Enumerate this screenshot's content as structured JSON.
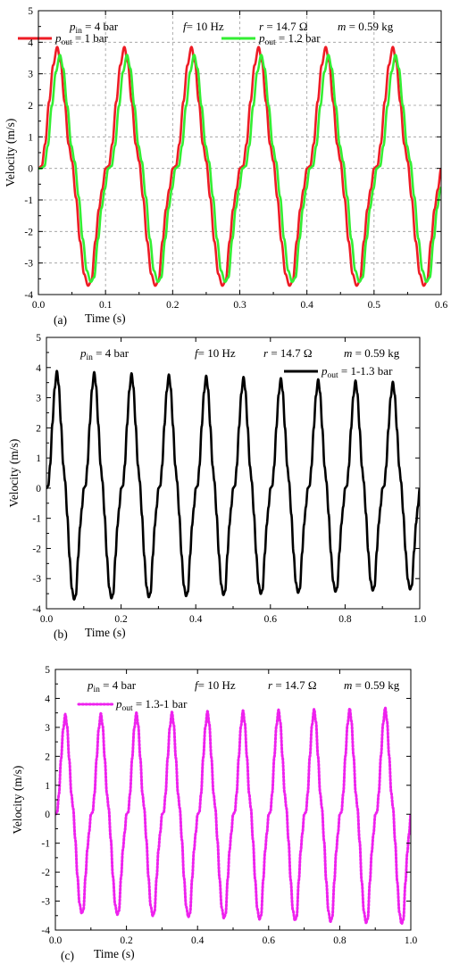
{
  "chart_data": [
    {
      "type": "line",
      "panel_label": "(a)",
      "xlabel": "Time (s)",
      "ylabel": "Velocity (m/s)",
      "xlim": [
        0,
        0.6
      ],
      "ylim": [
        -4,
        5
      ],
      "x_ticks": [
        "0.0",
        "0.1",
        "0.2",
        "0.3",
        "0.4",
        "0.5",
        "0.6"
      ],
      "y_ticks": [
        "-4",
        "-3",
        "-2",
        "-1",
        "0",
        "1",
        "2",
        "3",
        "4",
        "5"
      ],
      "grid": true,
      "annotations": [
        {
          "sym": "p",
          "sub": "in",
          "rest": " = 4 bar"
        },
        {
          "sym": "f",
          "sub": "",
          "rest": "= 10 Hz"
        },
        {
          "sym": "r",
          "sub": "",
          "rest": " = 14.7 Ω"
        },
        {
          "sym": "m",
          "sub": "",
          "rest": " = 0.59 kg"
        }
      ],
      "series": [
        {
          "name": {
            "sym": "p",
            "sub": "out",
            "rest": " = 1 bar"
          },
          "color": "#ee1c25",
          "style": "solid",
          "period": 0.1,
          "peak": 3.85,
          "trough": -3.72
        },
        {
          "name": {
            "sym": "p",
            "sub": "out",
            "rest": " = 1.2 bar"
          },
          "color": "#33ee33",
          "style": "solid",
          "period": 0.1,
          "peak": 3.6,
          "trough": -3.6
        }
      ]
    },
    {
      "type": "line",
      "panel_label": "(b)",
      "xlabel": "Time (s)",
      "ylabel": "Velocity (m/s)",
      "xlim": [
        0,
        1.0
      ],
      "ylim": [
        -4,
        5
      ],
      "x_ticks": [
        "0.0",
        "0.2",
        "0.4",
        "0.6",
        "0.8",
        "1.0"
      ],
      "y_ticks": [
        "-4",
        "-3",
        "-2",
        "-1",
        "0",
        "1",
        "2",
        "3",
        "4",
        "5"
      ],
      "grid": false,
      "annotations": [
        {
          "sym": "p",
          "sub": "in",
          "rest": " = 4 bar"
        },
        {
          "sym": "f",
          "sub": "",
          "rest": "= 10 Hz"
        },
        {
          "sym": "r",
          "sub": "",
          "rest": " = 14.7 Ω"
        },
        {
          "sym": "m",
          "sub": "",
          "rest": " = 0.59 kg"
        }
      ],
      "series": [
        {
          "name": {
            "sym": "p",
            "sub": "out",
            "rest": " = 1-1.3 bar"
          },
          "color": "#000000",
          "style": "solid",
          "period": 0.1,
          "peak_start": 3.9,
          "peak_end": 3.5,
          "trough_start": -3.72,
          "trough_end": -3.35
        }
      ]
    },
    {
      "type": "line",
      "panel_label": "(c)",
      "xlabel": "Time (s)",
      "ylabel": "Velocity (m/s)",
      "xlim": [
        0,
        1.0
      ],
      "ylim": [
        -4,
        5
      ],
      "x_ticks": [
        "0.0",
        "0.2",
        "0.4",
        "0.6",
        "0.8",
        "1.0"
      ],
      "y_ticks": [
        "-4",
        "-3",
        "-2",
        "-1",
        "0",
        "1",
        "2",
        "3",
        "4",
        "5"
      ],
      "grid": false,
      "annotations": [
        {
          "sym": "p",
          "sub": "in",
          "rest": " = 4 bar"
        },
        {
          "sym": "f",
          "sub": "",
          "rest": "= 10 Hz"
        },
        {
          "sym": "r",
          "sub": "",
          "rest": " = 14.7 Ω"
        },
        {
          "sym": "m",
          "sub": "",
          "rest": " = 0.59 kg"
        }
      ],
      "series": [
        {
          "name": {
            "sym": "p",
            "sub": "out",
            "rest": " = 1.3-1 bar"
          },
          "color": "#ee22ee",
          "style": "dotted",
          "period": 0.1,
          "peak_start": 3.45,
          "peak_end": 3.7,
          "trough_start": -3.4,
          "trough_end": -3.8
        }
      ]
    }
  ]
}
